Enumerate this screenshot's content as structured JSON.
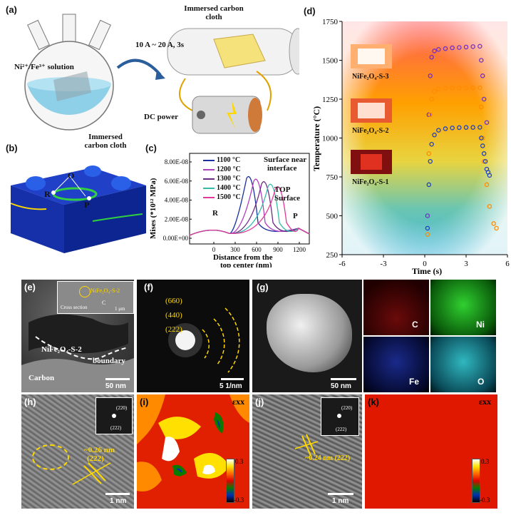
{
  "panel_labels": {
    "a": "(a)",
    "b": "(b)",
    "c": "(c)",
    "d": "(d)",
    "e": "(e)",
    "f": "(f)",
    "g": "(g)",
    "h": "(h)",
    "i": "(i)",
    "j": "(j)",
    "k": "(k)"
  },
  "panel_a": {
    "solution_label": "Ni²⁺/Fe³⁺ solution",
    "cloth_label": "Immersed carbon cloth",
    "cloth_label_tube": "Immersed carbon cloth",
    "current_label": "10 A ~ 20 A, 3s",
    "power_label": "DC power"
  },
  "panel_b": {
    "O": "O",
    "R": "R",
    "P": "P"
  },
  "panel_c": {
    "ylabel": "Mises (*10¹² MPa)",
    "xlabel_line1": "Distance from the",
    "xlabel_line2": "top center (nm)",
    "yticks": [
      "0.00E+00",
      "2.00E-08",
      "4.00E-08",
      "6.00E-08",
      "8.00E-08"
    ],
    "xticks": [
      "0",
      "300",
      "600",
      "900",
      "1200"
    ],
    "legend": [
      "1100 °C",
      "1200 °C",
      "1300 °C",
      "1400 °C",
      "1500 °C"
    ],
    "legend_colors": [
      "#1a2fa0",
      "#b040c0",
      "#6b2b80",
      "#33bba8",
      "#e0389a"
    ],
    "annotations": {
      "surface_near": "Surface near",
      "interface": "interface",
      "top": "TOP",
      "surface": "Surface",
      "R": "R",
      "P": "P"
    }
  },
  "chart_data": {
    "type": "scatter",
    "ylabel": "Temperature (°C)",
    "xlabel": "Time (s)",
    "xlim": [
      -6,
      6
    ],
    "ylim": [
      250,
      1750
    ],
    "xticks": [
      "-6",
      "-3",
      "0",
      "3",
      "6"
    ],
    "yticks": [
      "250",
      "500",
      "750",
      "1000",
      "1250",
      "1500",
      "1750"
    ],
    "series": [
      {
        "name": "NiFe₂O₄-S-3",
        "color": "#7030c8",
        "x": [
          0.2,
          0.3,
          0.4,
          0.5,
          0.7,
          1.0,
          1.5,
          2.0,
          2.5,
          3.0,
          3.5,
          4.0,
          4.1,
          4.2,
          4.3,
          4.5
        ],
        "y": [
          500,
          1150,
          1400,
          1520,
          1560,
          1570,
          1575,
          1580,
          1582,
          1585,
          1588,
          1590,
          1500,
          1400,
          1250,
          1100
        ]
      },
      {
        "name": "NiFe₂O₄-S-2",
        "color": "#ff8c00",
        "x": [
          0.2,
          0.3,
          0.4,
          0.5,
          0.7,
          1.0,
          1.5,
          2.0,
          2.5,
          3.0,
          3.5,
          4.0,
          4.1,
          4.2,
          4.3,
          4.5,
          4.7,
          5.0,
          5.2
        ],
        "y": [
          380,
          900,
          1150,
          1250,
          1300,
          1315,
          1320,
          1322,
          1322,
          1323,
          1323,
          1323,
          1200,
          1000,
          850,
          700,
          560,
          450,
          420
        ]
      },
      {
        "name": "NiFe₂O₄-S-1",
        "color": "#2040c0",
        "x": [
          0.2,
          0.3,
          0.4,
          0.5,
          0.7,
          1.0,
          1.5,
          2.0,
          2.5,
          3.0,
          3.5,
          4.0,
          4.1,
          4.2,
          4.3,
          4.4,
          4.5,
          4.6,
          4.7
        ],
        "y": [
          420,
          700,
          850,
          960,
          1020,
          1050,
          1060,
          1065,
          1067,
          1068,
          1068,
          1069,
          1000,
          950,
          900,
          850,
          800,
          780,
          760
        ]
      }
    ]
  },
  "panel_d_insets": [
    "NiFe₂O₄-S-3",
    "NiFe₂O₄-S-2",
    "NiFe₂O₄-S-1"
  ],
  "panel_e": {
    "inset_label": "NiFe₂O₄-S-2",
    "inset_cs": "Cross section",
    "inset_c": "C",
    "inset_scale": "1 μm",
    "phase": "NiFe₂O₄-S-2",
    "boundary": "boundary",
    "carbon": "Carbon",
    "scale": "50 nm"
  },
  "panel_f": {
    "rings": [
      "(660)",
      "(440)",
      "(222)"
    ],
    "scale": "5 1/nm"
  },
  "panel_g": {
    "scale": "50 nm",
    "elements": [
      "C",
      "Ni",
      "Fe",
      "O"
    ],
    "element_colors": [
      "#d41818",
      "#2ad42a",
      "#2a3ad4",
      "#2ab8c0"
    ]
  },
  "panel_h": {
    "spacing": "~0.26 nm",
    "plane": "(222)",
    "fft": [
      "(220)",
      "(222)"
    ],
    "scale": "1 nm"
  },
  "panel_i": {
    "label": "εxx",
    "cmax": "0.3",
    "cmin": "-0.3"
  },
  "panel_j": {
    "spacing": "~0.24 nm (222)",
    "fft": [
      "(220)",
      "(222)"
    ],
    "scale": "1 nm"
  },
  "panel_k": {
    "label": "εxx",
    "cmax": "0.3",
    "cmin": "-0.3"
  }
}
